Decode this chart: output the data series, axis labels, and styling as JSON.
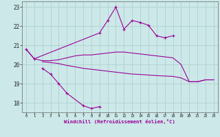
{
  "background_color": "#cce8e8",
  "grid_color": "#aacccc",
  "line_color": "#990099",
  "xlabel": "Windchill (Refroidissement éolien,°C)",
  "yticks": [
    18,
    19,
    20,
    21,
    22,
    23
  ],
  "xlim": [
    -0.5,
    23.5
  ],
  "ylim": [
    17.5,
    23.3
  ],
  "top_x": [
    0,
    1,
    9,
    10,
    11,
    12,
    13,
    14,
    15,
    16,
    17,
    18
  ],
  "top_y": [
    20.8,
    20.3,
    21.65,
    22.3,
    23.0,
    21.85,
    22.3,
    22.2,
    22.05,
    21.5,
    21.4,
    21.5
  ],
  "bot_x": [
    2,
    3,
    4,
    5,
    7,
    8,
    9
  ],
  "bot_y": [
    19.8,
    19.5,
    19.0,
    18.5,
    17.85,
    17.7,
    17.8
  ],
  "mid1_x": [
    0,
    1,
    2,
    3,
    4,
    5,
    6,
    7,
    8,
    9,
    10,
    11,
    12,
    13,
    14,
    15,
    16,
    17,
    18,
    19,
    20,
    21,
    22,
    23
  ],
  "mid1_y": [
    20.8,
    20.3,
    20.2,
    20.2,
    20.25,
    20.35,
    20.45,
    20.5,
    20.5,
    20.55,
    20.6,
    20.65,
    20.65,
    20.6,
    20.55,
    20.5,
    20.45,
    20.4,
    20.35,
    20.0,
    19.1,
    19.1,
    19.2,
    19.2
  ],
  "mid2_x": [
    2,
    3,
    4,
    5,
    6,
    7,
    8,
    9,
    10,
    11,
    12,
    13,
    14,
    15,
    16,
    17,
    18,
    19,
    20,
    21,
    22,
    23
  ],
  "mid2_y": [
    20.15,
    20.1,
    20.05,
    19.95,
    19.88,
    19.8,
    19.75,
    19.7,
    19.65,
    19.6,
    19.55,
    19.5,
    19.48,
    19.45,
    19.42,
    19.4,
    19.38,
    19.3,
    19.1,
    19.1,
    19.2,
    19.2
  ]
}
